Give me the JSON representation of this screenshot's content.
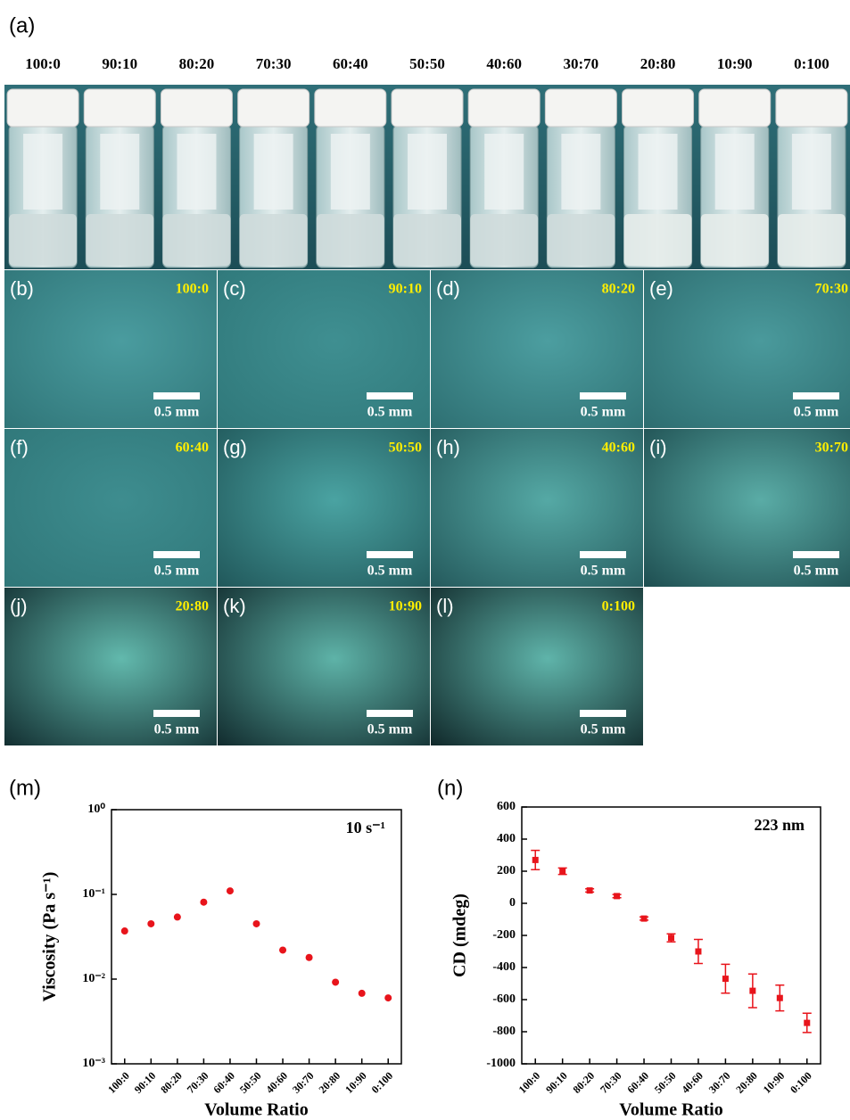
{
  "panel_a": {
    "label": "(a)",
    "ratios": [
      "100:0",
      "90:10",
      "80:20",
      "70:30",
      "60:40",
      "50:50",
      "40:60",
      "30:70",
      "20:80",
      "10:90",
      "0:100"
    ]
  },
  "micrographs": [
    {
      "label": "(b)",
      "ratio": "100:0",
      "scale": "0.5 mm"
    },
    {
      "label": "(c)",
      "ratio": "90:10",
      "scale": "0.5 mm"
    },
    {
      "label": "(d)",
      "ratio": "80:20",
      "scale": "0.5 mm"
    },
    {
      "label": "(e)",
      "ratio": "70:30",
      "scale": "0.5 mm"
    },
    {
      "label": "(f)",
      "ratio": "60:40",
      "scale": "0.5 mm"
    },
    {
      "label": "(g)",
      "ratio": "50:50",
      "scale": "0.5 mm"
    },
    {
      "label": "(h)",
      "ratio": "40:60",
      "scale": "0.5 mm"
    },
    {
      "label": "(i)",
      "ratio": "30:70",
      "scale": "0.5 mm"
    },
    {
      "label": "(j)",
      "ratio": "20:80",
      "scale": "0.5 mm"
    },
    {
      "label": "(k)",
      "ratio": "10:90",
      "scale": "0.5 mm"
    },
    {
      "label": "(l)",
      "ratio": "0:100",
      "scale": "0.5 mm"
    }
  ],
  "chart_data": [
    {
      "type": "scatter",
      "panel": "(m)",
      "annotation": "10 s⁻¹",
      "xlabel": "Volume Ratio",
      "ylabel": "Viscosity (Pa s⁻¹)",
      "log_y": true,
      "color": "#e8141b",
      "categories": [
        "100:0",
        "90:10",
        "80:20",
        "70:30",
        "60:40",
        "50:50",
        "40:60",
        "30:70",
        "20:80",
        "10:90",
        "0:100"
      ],
      "values": [
        0.037,
        0.045,
        0.054,
        0.081,
        0.11,
        0.045,
        0.022,
        0.018,
        0.0092,
        0.0068,
        0.006
      ],
      "ylim": [
        0.001,
        1
      ],
      "yticks": [
        {
          "value": 0.001,
          "label": "10⁻³"
        },
        {
          "value": 0.01,
          "label": "10⁻²"
        },
        {
          "value": 0.1,
          "label": "10⁻¹"
        },
        {
          "value": 1,
          "label": "10⁰"
        }
      ]
    },
    {
      "type": "errorbar",
      "panel": "(n)",
      "annotation": "223 nm",
      "xlabel": "Volume Ratio",
      "ylabel": "CD (mdeg)",
      "color": "#e8141b",
      "categories": [
        "100:0",
        "90:10",
        "80:20",
        "70:30",
        "60:40",
        "50:50",
        "40:60",
        "30:70",
        "20:80",
        "10:90",
        "0:100"
      ],
      "values": [
        270,
        200,
        80,
        45,
        -95,
        -215,
        -300,
        -470,
        -545,
        -590,
        -745
      ],
      "errors": [
        60,
        20,
        10,
        10,
        10,
        25,
        75,
        90,
        105,
        80,
        60
      ],
      "ylim": [
        -1000,
        600
      ],
      "yticks": [
        -1000,
        -800,
        -600,
        -400,
        -200,
        0,
        200,
        400,
        600
      ]
    }
  ]
}
